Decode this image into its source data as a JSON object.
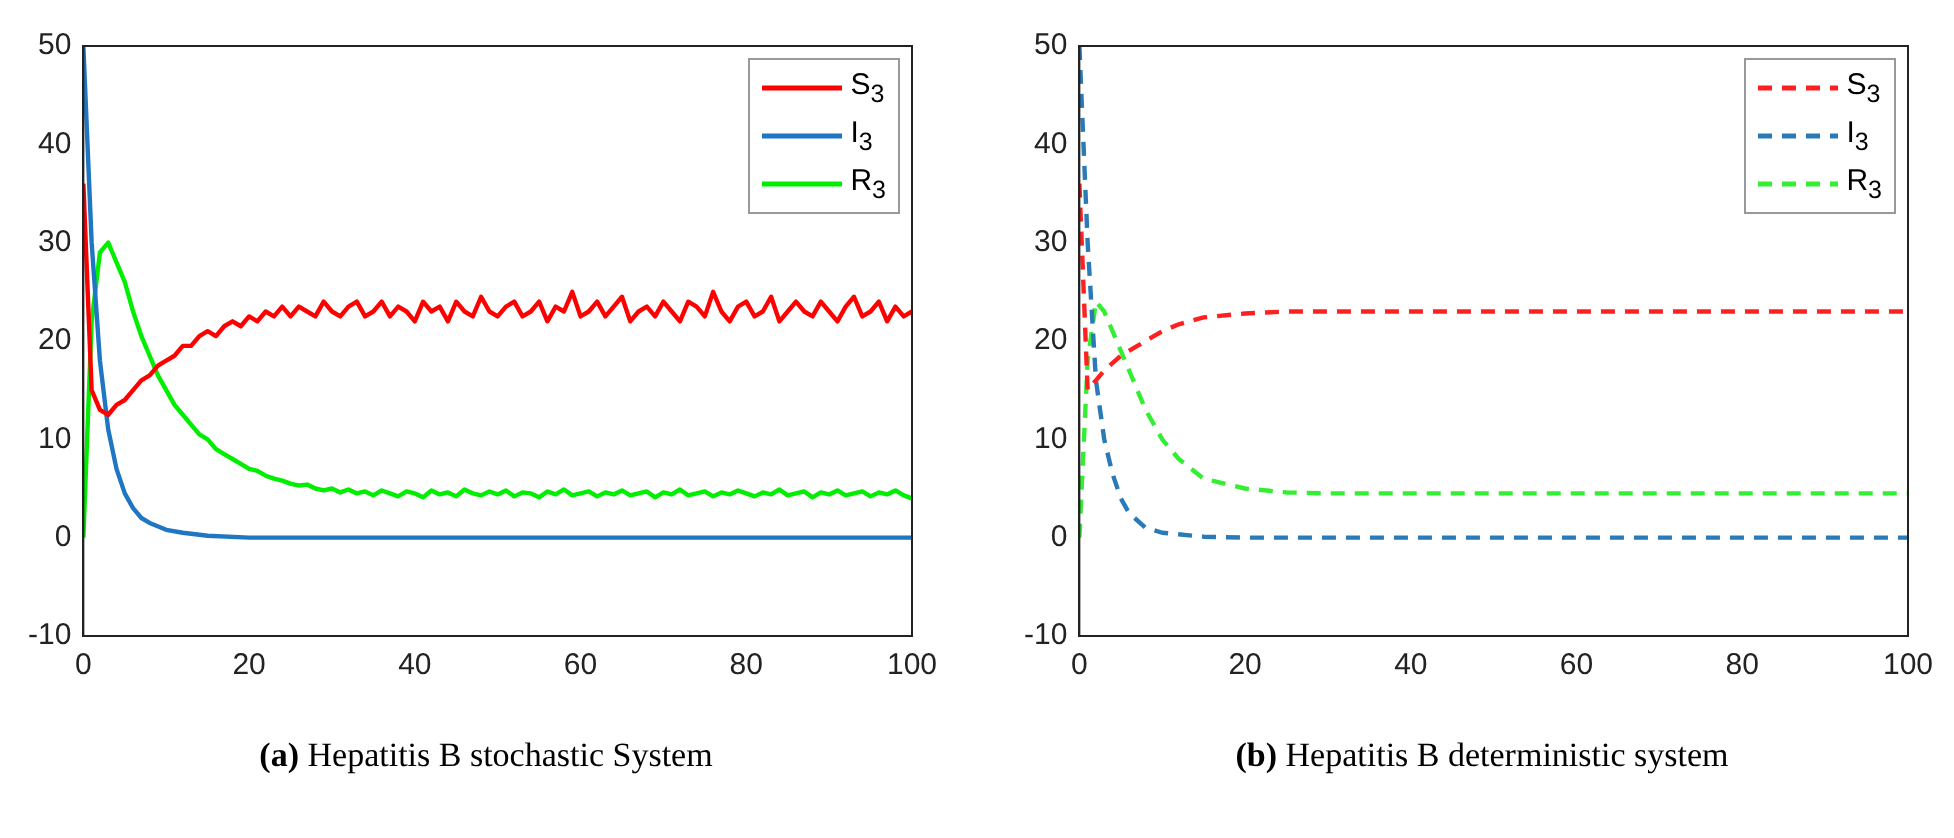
{
  "chart_data": [
    {
      "type": "line",
      "annotations": [
        "(a) Hepatitis B stochastic System"
      ],
      "xlim": [
        0,
        100
      ],
      "xticks": [
        0,
        20,
        40,
        60,
        80,
        100
      ],
      "ylim": [
        -10,
        50
      ],
      "yticks": [
        -10,
        0,
        10,
        20,
        30,
        40,
        50
      ],
      "grid": false,
      "legend": "top right",
      "marker": "none",
      "line_style": "solid",
      "series": [
        {
          "name": "S$_{3}$",
          "color": "#ff0000",
          "x": [
            0,
            1,
            2,
            3,
            4,
            5,
            6,
            7,
            8,
            9,
            10,
            11,
            12,
            13,
            14,
            15,
            16,
            17,
            18,
            19,
            20,
            21,
            22,
            23,
            24,
            25,
            26,
            27,
            28,
            29,
            30,
            31,
            32,
            33,
            34,
            35,
            36,
            37,
            38,
            39,
            40,
            41,
            42,
            43,
            44,
            45,
            46,
            47,
            48,
            49,
            50,
            51,
            52,
            53,
            54,
            55,
            56,
            57,
            58,
            59,
            60,
            61,
            62,
            63,
            64,
            65,
            66,
            67,
            68,
            69,
            70,
            71,
            72,
            73,
            74,
            75,
            76,
            77,
            78,
            79,
            80,
            81,
            82,
            83,
            84,
            85,
            86,
            87,
            88,
            89,
            90,
            91,
            92,
            93,
            94,
            95,
            96,
            97,
            98,
            99,
            100
          ],
          "values": [
            36,
            15,
            13,
            12.5,
            13.5,
            14,
            15,
            16,
            16.5,
            17.5,
            18,
            18.5,
            19.5,
            19.5,
            20.5,
            21,
            20.5,
            21.5,
            22,
            21.5,
            22.5,
            22,
            23,
            22.5,
            23.5,
            22.5,
            23.5,
            23,
            22.5,
            24,
            23,
            22.5,
            23.5,
            24,
            22.5,
            23,
            24,
            22.5,
            23.5,
            23,
            22,
            24,
            23,
            23.5,
            22,
            24,
            23,
            22.5,
            24.5,
            23,
            22.5,
            23.5,
            24,
            22.5,
            23,
            24,
            22,
            23.5,
            23,
            25,
            22.5,
            23,
            24,
            22.5,
            23.5,
            24.5,
            22,
            23,
            23.5,
            22.5,
            24,
            23,
            22,
            24,
            23.5,
            22.5,
            25,
            23,
            22,
            23.5,
            24,
            22.5,
            23,
            24.5,
            22,
            23,
            24,
            23,
            22.5,
            24,
            23,
            22,
            23.5,
            24.5,
            22.5,
            23,
            24,
            22,
            23.5,
            22.5,
            23
          ]
        },
        {
          "name": "I$_{3}$",
          "color": "#1f77c4",
          "x": [
            0,
            1,
            2,
            3,
            4,
            5,
            6,
            7,
            8,
            10,
            12,
            15,
            20,
            25,
            30,
            40,
            50,
            60,
            70,
            80,
            90,
            100
          ],
          "values": [
            50,
            30,
            18,
            11,
            7,
            4.5,
            3,
            2,
            1.5,
            0.8,
            0.5,
            0.2,
            0,
            0,
            0,
            0,
            0,
            0,
            0,
            0,
            0,
            0
          ]
        },
        {
          "name": "R$_{3}$",
          "color": "#00ee00",
          "x": [
            0,
            1,
            2,
            3,
            4,
            5,
            6,
            7,
            8,
            9,
            10,
            11,
            12,
            13,
            14,
            15,
            16,
            17,
            18,
            19,
            20,
            21,
            22,
            23,
            24,
            25,
            26,
            27,
            28,
            29,
            30,
            31,
            32,
            33,
            34,
            35,
            36,
            37,
            38,
            39,
            40,
            41,
            42,
            43,
            44,
            45,
            46,
            47,
            48,
            49,
            50,
            51,
            52,
            53,
            54,
            55,
            56,
            57,
            58,
            59,
            60,
            61,
            62,
            63,
            64,
            65,
            66,
            67,
            68,
            69,
            70,
            71,
            72,
            73,
            74,
            75,
            76,
            77,
            78,
            79,
            80,
            81,
            82,
            83,
            84,
            85,
            86,
            87,
            88,
            89,
            90,
            91,
            92,
            93,
            94,
            95,
            96,
            97,
            98,
            99,
            100
          ],
          "values": [
            0,
            22,
            29,
            30,
            28,
            26,
            23,
            20.5,
            18.5,
            16.5,
            15,
            13.5,
            12.5,
            11.5,
            10.5,
            10,
            9,
            8.5,
            8,
            7.5,
            7,
            6.8,
            6.3,
            6,
            5.8,
            5.5,
            5.3,
            5.4,
            5,
            4.8,
            5,
            4.6,
            4.9,
            4.5,
            4.7,
            4.3,
            4.8,
            4.5,
            4.2,
            4.7,
            4.5,
            4.1,
            4.8,
            4.4,
            4.6,
            4.2,
            4.9,
            4.5,
            4.3,
            4.7,
            4.4,
            4.8,
            4.2,
            4.6,
            4.5,
            4.1,
            4.7,
            4.4,
            4.9,
            4.3,
            4.5,
            4.7,
            4.2,
            4.6,
            4.4,
            4.8,
            4.3,
            4.5,
            4.7,
            4.1,
            4.6,
            4.4,
            4.9,
            4.3,
            4.5,
            4.7,
            4.2,
            4.6,
            4.4,
            4.8,
            4.5,
            4.2,
            4.6,
            4.4,
            4.9,
            4.3,
            4.5,
            4.7,
            4.1,
            4.6,
            4.4,
            4.8,
            4.3,
            4.5,
            4.7,
            4.2,
            4.6,
            4.4,
            4.8,
            4.3,
            4
          ]
        }
      ]
    },
    {
      "type": "line",
      "annotations": [
        "(b) Hepatitis B deterministic system"
      ],
      "xlim": [
        0,
        100
      ],
      "xticks": [
        0,
        20,
        40,
        60,
        80,
        100
      ],
      "ylim": [
        -10,
        50
      ],
      "yticks": [
        -10,
        0,
        10,
        20,
        30,
        40,
        50
      ],
      "grid": false,
      "legend": "top right",
      "marker": "none",
      "line_style": "dashed",
      "series": [
        {
          "name": "S$_{3}$",
          "color": "#ff2020",
          "x": [
            0,
            1,
            2,
            3,
            5,
            7,
            10,
            12,
            15,
            20,
            25,
            30,
            40,
            60,
            80,
            100
          ],
          "values": [
            36,
            15,
            16,
            17,
            18.5,
            19.5,
            21,
            21.7,
            22.4,
            22.8,
            23,
            23,
            23,
            23,
            23,
            23
          ]
        },
        {
          "name": "I$_{3}$",
          "color": "#2a7ab8",
          "x": [
            0,
            1,
            2,
            3,
            4,
            5,
            6,
            8,
            10,
            15,
            20,
            30,
            60,
            100
          ],
          "values": [
            50,
            30,
            16,
            10,
            6.5,
            4,
            2.5,
            1,
            0.5,
            0.1,
            0,
            0,
            0,
            0
          ]
        },
        {
          "name": "R$_{3}$",
          "color": "#33ee33",
          "x": [
            0,
            1,
            2,
            3,
            4,
            6,
            8,
            10,
            12,
            15,
            20,
            25,
            30,
            60,
            100
          ],
          "values": [
            0,
            18,
            24,
            23,
            21,
            17,
            13,
            10,
            8,
            6,
            5,
            4.6,
            4.5,
            4.5,
            4.5
          ]
        }
      ]
    }
  ]
}
